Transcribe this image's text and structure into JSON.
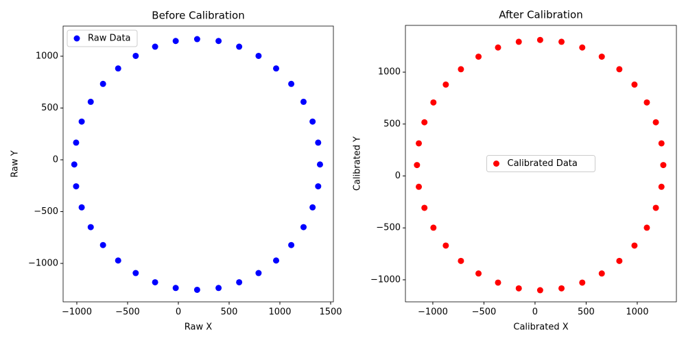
{
  "chart_data": [
    {
      "type": "scatter",
      "title": "Before Calibration",
      "x_label": "Raw X",
      "y_label": "Raw Y",
      "xlim": [
        -1135,
        1527
      ],
      "ylim": [
        -1371,
        1291
      ],
      "xticks": [
        {
          "value": -1000,
          "label": "−1000"
        },
        {
          "value": -500,
          "label": "−500"
        },
        0,
        500,
        1000,
        1500
      ],
      "yticks": [
        {
          "value": -1000,
          "label": "−1000"
        },
        {
          "value": -500,
          "label": "−500"
        },
        0,
        500,
        1000
      ],
      "legend": "upper left",
      "series": [
        {
          "name": "Raw Data",
          "color": "#0000ff",
          "x": [
            1395,
            1377,
            1322,
            1233,
            1112,
            963,
            790,
            599,
            396,
            185,
            -26,
            -229,
            -420,
            -593,
            -742,
            -863,
            -952,
            -1007,
            -1025,
            -1007,
            -952,
            -863,
            -742,
            -593,
            -420,
            -229,
            -26,
            185,
            396,
            599,
            790,
            963,
            1112,
            1233,
            1322,
            1377
          ],
          "y": [
            -45,
            166,
            369,
            560,
            733,
            882,
            1003,
            1092,
            1147,
            1165,
            1147,
            1092,
            1003,
            882,
            733,
            560,
            369,
            166,
            -45,
            -256,
            -459,
            -650,
            -823,
            -972,
            -1093,
            -1182,
            -1237,
            -1255,
            -1237,
            -1182,
            -1093,
            -972,
            -823,
            -650,
            -459,
            -256
          ]
        }
      ]
    },
    {
      "type": "scatter",
      "title": "After Calibration",
      "x_label": "Calibrated X",
      "y_label": "Calibrated Y",
      "xlim": [
        -1268,
        1383
      ],
      "ylim": [
        -1212,
        1450
      ],
      "xticks": [
        {
          "value": -1000,
          "label": "−1000"
        },
        {
          "value": -500,
          "label": "−500"
        },
        0,
        500,
        1000
      ],
      "yticks": [
        {
          "value": -1000,
          "label": "−1000"
        },
        {
          "value": -500,
          "label": "−500"
        },
        0,
        500,
        1000
      ],
      "legend": "center",
      "series": [
        {
          "name": "Calibrated Data",
          "color": "#ff0000",
          "x": [
            1255,
            1237,
            1182,
            1094,
            973,
            825,
            653,
            462,
            259,
            50,
            -159,
            -362,
            -553,
            -725,
            -873,
            -994,
            -1082,
            -1137,
            -1155,
            -1137,
            -1082,
            -994,
            -873,
            -725,
            -553,
            -362,
            -159,
            50,
            259,
            462,
            653,
            825,
            973,
            1094,
            1182,
            1237
          ],
          "y": [
            105,
            314,
            517,
            708,
            880,
            1028,
            1149,
            1237,
            1292,
            1310,
            1292,
            1237,
            1149,
            1028,
            880,
            708,
            517,
            314,
            105,
            -104,
            -307,
            -498,
            -670,
            -818,
            -939,
            -1027,
            -1082,
            -1100,
            -1082,
            -1027,
            -939,
            -818,
            -670,
            -498,
            -307,
            -104
          ]
        }
      ]
    }
  ]
}
